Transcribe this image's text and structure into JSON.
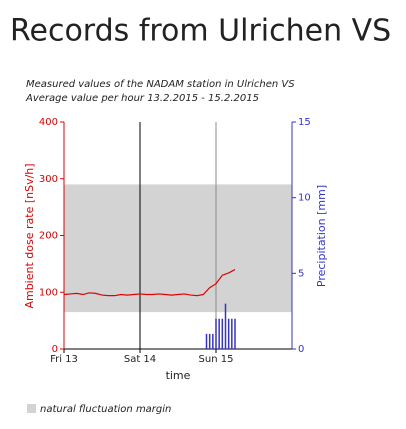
{
  "chart_data": {
    "type": "line",
    "title": "Records from Ulrichen VS",
    "subtitle": [
      "Measured values of the NADAM station in Ulrichen VS",
      "Average value per hour 13.2.2015 - 15.2.2015"
    ],
    "x_label": "time",
    "y_label": "Ambient dose rate [nSv/h]",
    "y2_label": "Precipitation [mm]",
    "xlim": [
      0,
      72
    ],
    "xticks": [
      {
        "value": 0,
        "label": "Fri 13"
      },
      {
        "value": 24,
        "label": "Sat 14"
      },
      {
        "value": 48,
        "label": "Sun 15"
      }
    ],
    "ylim": [
      0,
      400
    ],
    "yticks": [
      0,
      100,
      200,
      300,
      400
    ],
    "y2lim": [
      0,
      15
    ],
    "y2ticks": [
      0,
      5,
      10,
      15
    ],
    "band": {
      "name": "natural fluctuation margin",
      "color": "#d3d3d3",
      "values": [
        65,
        290
      ]
    },
    "series": [
      {
        "type": "line",
        "color": "#e00000",
        "x": [
          0,
          2,
          4,
          6,
          8,
          10,
          12,
          14,
          16,
          18,
          20,
          22,
          24,
          26,
          28,
          30,
          32,
          34,
          36,
          38,
          40,
          42,
          44,
          46,
          48,
          50,
          52,
          54
        ],
        "values": [
          96,
          97,
          98,
          96,
          99,
          98,
          95,
          94,
          94,
          96,
          95,
          96,
          97,
          96,
          96,
          97,
          96,
          95,
          96,
          97,
          95,
          94,
          96,
          108,
          115,
          130,
          134,
          140
        ]
      },
      {
        "type": "bar",
        "axis": "y2",
        "color": "#3333cc",
        "x": [
          45,
          46,
          47,
          48,
          49,
          50,
          51,
          52,
          53,
          54
        ],
        "values": [
          1,
          1,
          1,
          2,
          2,
          2,
          3,
          2,
          2,
          2
        ]
      }
    ]
  }
}
